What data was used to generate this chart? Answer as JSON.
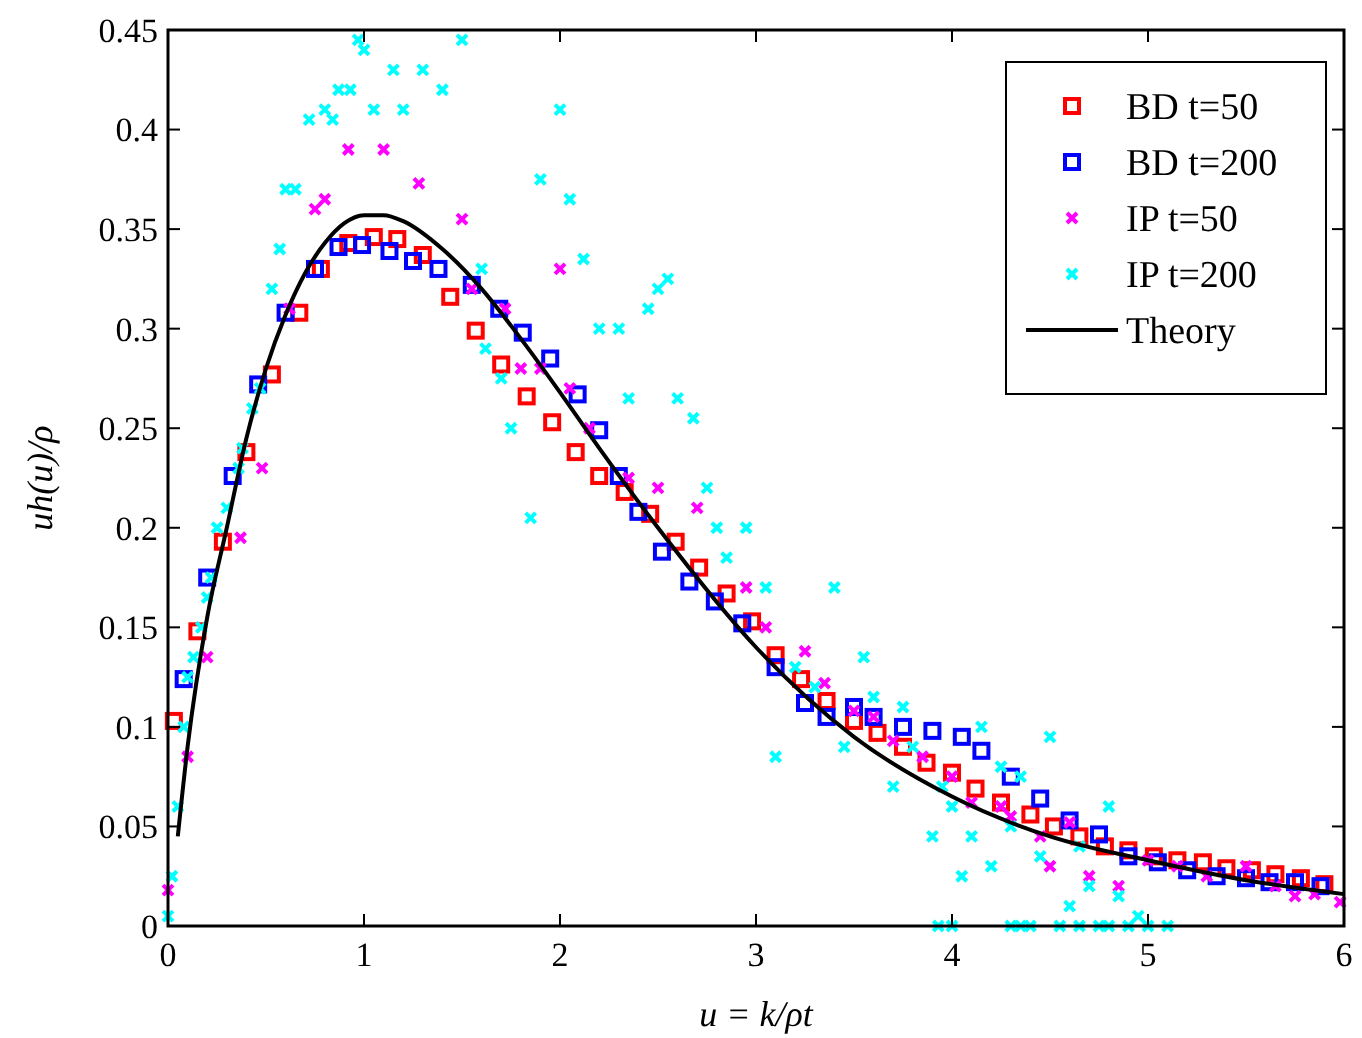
{
  "chart_data": {
    "type": "scatter",
    "xlabel": "u = k/ρt",
    "ylabel": "uh(u)/ρ",
    "xlim": [
      0,
      6
    ],
    "ylim": [
      0,
      0.45
    ],
    "xticks": [
      0,
      1,
      2,
      3,
      4,
      5,
      6
    ],
    "yticks": [
      0,
      0.05,
      0.1,
      0.15,
      0.2,
      0.25,
      0.3,
      0.35,
      0.4,
      0.45
    ],
    "grid": false,
    "legend": "top right",
    "series": [
      {
        "name": "BD t=50",
        "color": "#ff0000",
        "marker": "square",
        "x": [
          0.03,
          0.15,
          0.28,
          0.4,
          0.53,
          0.67,
          0.78,
          0.92,
          1.05,
          1.17,
          1.3,
          1.44,
          1.57,
          1.7,
          1.83,
          1.96,
          2.08,
          2.2,
          2.33,
          2.46,
          2.59,
          2.71,
          2.85,
          2.98,
          3.1,
          3.23,
          3.36,
          3.5,
          3.62,
          3.75,
          3.87,
          4.0,
          4.12,
          4.25,
          4.4,
          4.52,
          4.65,
          4.78,
          4.9,
          5.03,
          5.15,
          5.28,
          5.4,
          5.53,
          5.65,
          5.78,
          5.9
        ],
        "values": [
          0.103,
          0.148,
          0.193,
          0.238,
          0.277,
          0.308,
          0.33,
          0.343,
          0.346,
          0.345,
          0.337,
          0.316,
          0.299,
          0.282,
          0.266,
          0.253,
          0.238,
          0.226,
          0.218,
          0.207,
          0.193,
          0.18,
          0.167,
          0.153,
          0.136,
          0.124,
          0.113,
          0.103,
          0.097,
          0.09,
          0.082,
          0.077,
          0.069,
          0.062,
          0.056,
          0.05,
          0.045,
          0.04,
          0.038,
          0.035,
          0.033,
          0.032,
          0.029,
          0.028,
          0.026,
          0.024,
          0.021
        ]
      },
      {
        "name": "BD t=200",
        "color": "#0000ff",
        "marker": "square",
        "x": [
          0.08,
          0.2,
          0.33,
          0.46,
          0.6,
          0.75,
          0.87,
          0.99,
          1.13,
          1.25,
          1.38,
          1.55,
          1.69,
          1.81,
          1.95,
          2.09,
          2.2,
          2.3,
          2.4,
          2.52,
          2.66,
          2.79,
          2.93,
          3.1,
          3.25,
          3.36,
          3.5,
          3.6,
          3.75,
          3.9,
          4.05,
          4.15,
          4.3,
          4.45,
          4.6,
          4.75,
          4.9,
          5.05,
          5.2,
          5.35,
          5.5,
          5.62,
          5.75,
          5.88
        ],
        "values": [
          0.124,
          0.175,
          0.226,
          0.272,
          0.308,
          0.33,
          0.341,
          0.342,
          0.339,
          0.334,
          0.33,
          0.322,
          0.31,
          0.298,
          0.285,
          0.267,
          0.249,
          0.226,
          0.208,
          0.188,
          0.173,
          0.163,
          0.152,
          0.13,
          0.112,
          0.105,
          0.11,
          0.105,
          0.1,
          0.098,
          0.095,
          0.088,
          0.075,
          0.064,
          0.053,
          0.046,
          0.035,
          0.032,
          0.028,
          0.025,
          0.024,
          0.022,
          0.022,
          0.02
        ]
      },
      {
        "name": "IP t=50",
        "color": "#ff00ff",
        "marker": "cross",
        "x": [
          0.0,
          0.1,
          0.2,
          0.37,
          0.48,
          0.62,
          0.75,
          0.8,
          0.92,
          1.1,
          1.28,
          1.5,
          1.55,
          1.72,
          1.8,
          1.9,
          2.0,
          2.05,
          2.15,
          2.35,
          2.5,
          2.7,
          2.95,
          3.05,
          3.25,
          3.35,
          3.5,
          3.6,
          3.7,
          3.85,
          4.0,
          4.1,
          4.25,
          4.3,
          4.45,
          4.5,
          4.6,
          4.7,
          4.85,
          5.0,
          5.15,
          5.3,
          5.5,
          5.65,
          5.75,
          5.85,
          5.98
        ],
        "values": [
          0.018,
          0.085,
          0.135,
          0.195,
          0.23,
          0.31,
          0.36,
          0.365,
          0.39,
          0.39,
          0.373,
          0.355,
          0.32,
          0.31,
          0.28,
          0.28,
          0.33,
          0.27,
          0.25,
          0.225,
          0.22,
          0.21,
          0.17,
          0.15,
          0.138,
          0.122,
          0.108,
          0.105,
          0.093,
          0.085,
          0.075,
          0.062,
          0.06,
          0.055,
          0.045,
          0.03,
          0.052,
          0.025,
          0.02,
          0.033,
          0.03,
          0.025,
          0.03,
          0.02,
          0.015,
          0.016,
          0.012
        ]
      },
      {
        "name": "IP t=200",
        "color": "#00ffff",
        "marker": "cross",
        "x": [
          0.0,
          0.02,
          0.05,
          0.08,
          0.1,
          0.13,
          0.17,
          0.2,
          0.22,
          0.25,
          0.3,
          0.36,
          0.38,
          0.43,
          0.47,
          0.53,
          0.57,
          0.6,
          0.65,
          0.72,
          0.8,
          0.84,
          0.87,
          0.93,
          0.97,
          1.0,
          1.05,
          1.15,
          1.2,
          1.3,
          1.4,
          1.5,
          1.6,
          1.62,
          1.7,
          1.75,
          1.85,
          1.9,
          2.0,
          2.05,
          2.12,
          2.2,
          2.3,
          2.35,
          2.45,
          2.5,
          2.55,
          2.6,
          2.68,
          2.75,
          2.8,
          2.85,
          2.95,
          3.05,
          3.1,
          3.2,
          3.3,
          3.4,
          3.45,
          3.55,
          3.6,
          3.7,
          3.75,
          3.8,
          3.9,
          3.93,
          3.95,
          4.0,
          4.0,
          4.05,
          4.1,
          4.15,
          4.2,
          4.25,
          4.3,
          4.3,
          4.35,
          4.35,
          4.4,
          4.45,
          4.5,
          4.55,
          4.6,
          4.65,
          4.65,
          4.7,
          4.75,
          4.8,
          4.8,
          4.85,
          4.9,
          4.95,
          5.0,
          5.1
        ],
        "values": [
          0.005,
          0.025,
          0.06,
          0.1,
          0.125,
          0.135,
          0.15,
          0.165,
          0.175,
          0.2,
          0.21,
          0.23,
          0.24,
          0.26,
          0.27,
          0.32,
          0.34,
          0.37,
          0.37,
          0.405,
          0.41,
          0.405,
          0.42,
          0.42,
          0.445,
          0.44,
          0.41,
          0.43,
          0.41,
          0.43,
          0.42,
          0.445,
          0.33,
          0.29,
          0.275,
          0.25,
          0.205,
          0.375,
          0.41,
          0.365,
          0.335,
          0.3,
          0.3,
          0.265,
          0.31,
          0.32,
          0.325,
          0.265,
          0.255,
          0.22,
          0.2,
          0.185,
          0.2,
          0.17,
          0.085,
          0.13,
          0.12,
          0.17,
          0.09,
          0.135,
          0.115,
          0.07,
          0.11,
          0.09,
          0.045,
          0.0,
          0.07,
          0.06,
          0.0,
          0.025,
          0.045,
          0.1,
          0.03,
          0.08,
          0.05,
          0.0,
          0.075,
          0.0,
          0.0,
          0.035,
          0.095,
          0.0,
          0.01,
          0.04,
          0.0,
          0.02,
          0.0,
          0.06,
          0.0,
          0.015,
          0.0,
          0.005,
          0.0,
          0.0
        ]
      },
      {
        "name": "Theory",
        "type": "line",
        "color": "#000000",
        "marker": "none",
        "line_style": "solid",
        "x": [
          0.05,
          0.1,
          0.2,
          0.3,
          0.4,
          0.5,
          0.6,
          0.7,
          0.8,
          0.9,
          1.0,
          1.1,
          1.2,
          1.4,
          1.6,
          1.8,
          2.0,
          2.2,
          2.5,
          3.0,
          3.5,
          4.0,
          4.5,
          5.0,
          5.5,
          6.0
        ],
        "values": [
          0.045,
          0.09,
          0.155,
          0.2,
          0.245,
          0.28,
          0.307,
          0.328,
          0.343,
          0.353,
          0.357,
          0.357,
          0.354,
          0.34,
          0.32,
          0.295,
          0.268,
          0.24,
          0.2,
          0.14,
          0.095,
          0.065,
          0.045,
          0.033,
          0.023,
          0.016
        ]
      }
    ]
  }
}
